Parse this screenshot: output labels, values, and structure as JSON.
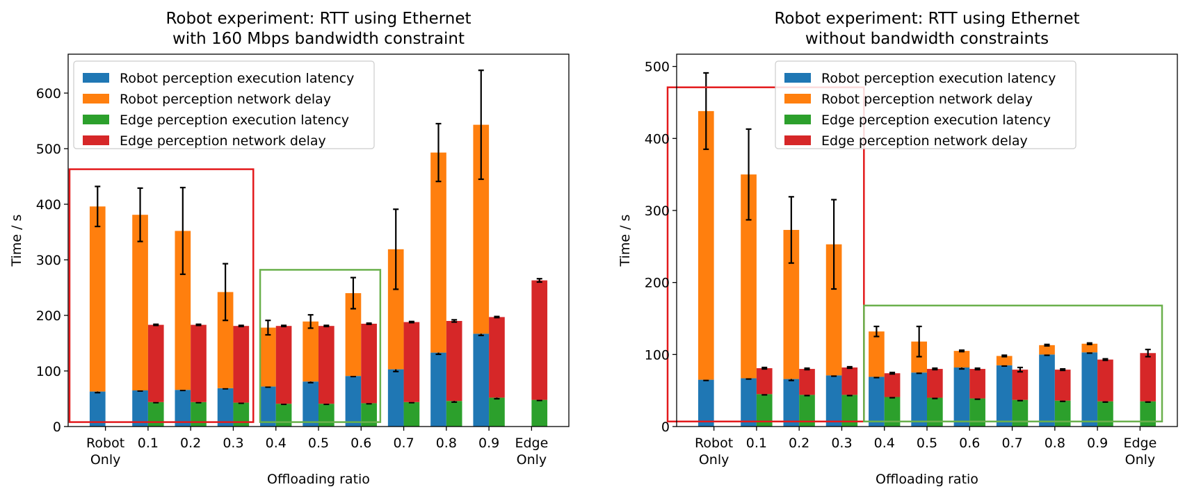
{
  "chart_data": [
    {
      "type": "bar",
      "title": "Robot experiment: RTT using Ethernet\nwith 160 Mbps bandwidth constraint",
      "xlabel": "Offloading ratio",
      "ylabel": "Time / s",
      "ylim": [
        0,
        670
      ],
      "yticks": [
        0,
        100,
        200,
        300,
        400,
        500,
        600
      ],
      "categories": [
        "Robot\nOnly",
        "0.1",
        "0.2",
        "0.3",
        "0.4",
        "0.5",
        "0.6",
        "0.7",
        "0.8",
        "0.9",
        "Edge\nOnly"
      ],
      "legend_position": "upper-left",
      "grid": false,
      "series": [
        {
          "name": "Robot perception execution latency",
          "color": "#1f77b4",
          "stack": "robot",
          "values": [
            63,
            65,
            66,
            69,
            72,
            81,
            91,
            103,
            133,
            167,
            null
          ],
          "errors": [
            2,
            1,
            1,
            1,
            1,
            2,
            1,
            4,
            3,
            3,
            null
          ]
        },
        {
          "name": "Robot perception network delay",
          "color": "#ff7f0e",
          "stack": "robot",
          "values": [
            333,
            316,
            286,
            173,
            106,
            108,
            149,
            216,
            360,
            376,
            null
          ],
          "errors": [
            36,
            48,
            78,
            51,
            13,
            12,
            28,
            72,
            52,
            98,
            null
          ]
        },
        {
          "name": "Edge perception execution latency",
          "color": "#2ca02c",
          "stack": "edge",
          "values": [
            null,
            44,
            44,
            43,
            41,
            41,
            42,
            44,
            46,
            52,
            48
          ],
          "errors": [
            null,
            1,
            1,
            1,
            1,
            1,
            1,
            1,
            2,
            2,
            1
          ]
        },
        {
          "name": "Edge perception network delay",
          "color": "#d62728",
          "stack": "edge",
          "values": [
            null,
            139,
            139,
            138,
            140,
            140,
            143,
            144,
            144,
            145,
            215
          ],
          "errors": [
            null,
            1,
            1,
            1,
            1,
            1,
            1,
            1,
            2,
            1,
            3
          ]
        }
      ],
      "highlight_boxes": [
        {
          "color": "#e31a1c",
          "from_category": 0,
          "to_category": 3,
          "y_range": [
            8,
            463
          ]
        },
        {
          "color": "#6ab04c",
          "from_category": 4,
          "to_category": 6,
          "y_range": [
            8,
            282
          ]
        }
      ]
    },
    {
      "type": "bar",
      "title": "Robot experiment: RTT using Ethernet\nwithout bandwidth constraints",
      "xlabel": "Offloading ratio",
      "ylabel": "Time / s",
      "ylim": [
        0,
        517
      ],
      "yticks": [
        0,
        100,
        200,
        300,
        400,
        500
      ],
      "categories": [
        "Robot\nOnly",
        "0.1",
        "0.2",
        "0.3",
        "0.4",
        "0.5",
        "0.6",
        "0.7",
        "0.8",
        "0.9",
        "Edge\nOnly"
      ],
      "legend_position": "upper-center",
      "grid": false,
      "series": [
        {
          "name": "Robot perception execution latency",
          "color": "#1f77b4",
          "stack": "robot",
          "values": [
            65,
            67,
            66,
            71,
            69,
            75,
            82,
            85,
            100,
            103,
            null
          ],
          "errors": [
            1,
            1,
            2,
            1,
            1,
            1,
            2,
            1,
            1,
            1,
            null
          ]
        },
        {
          "name": "Robot perception network delay",
          "color": "#ff7f0e",
          "stack": "robot",
          "values": [
            373,
            283,
            207,
            182,
            63,
            43,
            23,
            13,
            13,
            12,
            null
          ],
          "errors": [
            53,
            63,
            46,
            62,
            7,
            21,
            1,
            1,
            1,
            1,
            null
          ]
        },
        {
          "name": "Edge perception execution latency",
          "color": "#2ca02c",
          "stack": "edge",
          "values": [
            null,
            45,
            44,
            44,
            41,
            40,
            39,
            37,
            36,
            35,
            35
          ],
          "errors": [
            null,
            1,
            1,
            1,
            1,
            1,
            1,
            1,
            1,
            1,
            1
          ]
        },
        {
          "name": "Edge perception network delay",
          "color": "#d62728",
          "stack": "edge",
          "values": [
            null,
            36,
            36,
            38,
            33,
            40,
            41,
            42,
            43,
            58,
            67
          ],
          "errors": [
            null,
            1,
            1,
            1,
            1,
            1,
            1,
            3,
            1,
            1,
            5
          ]
        }
      ],
      "highlight_boxes": [
        {
          "color": "#e31a1c",
          "from_category": 0,
          "to_category": 3,
          "y_range": [
            7,
            471
          ]
        },
        {
          "color": "#6ab04c",
          "from_category": 4,
          "to_category": 10,
          "y_range": [
            7,
            168
          ]
        }
      ]
    }
  ]
}
